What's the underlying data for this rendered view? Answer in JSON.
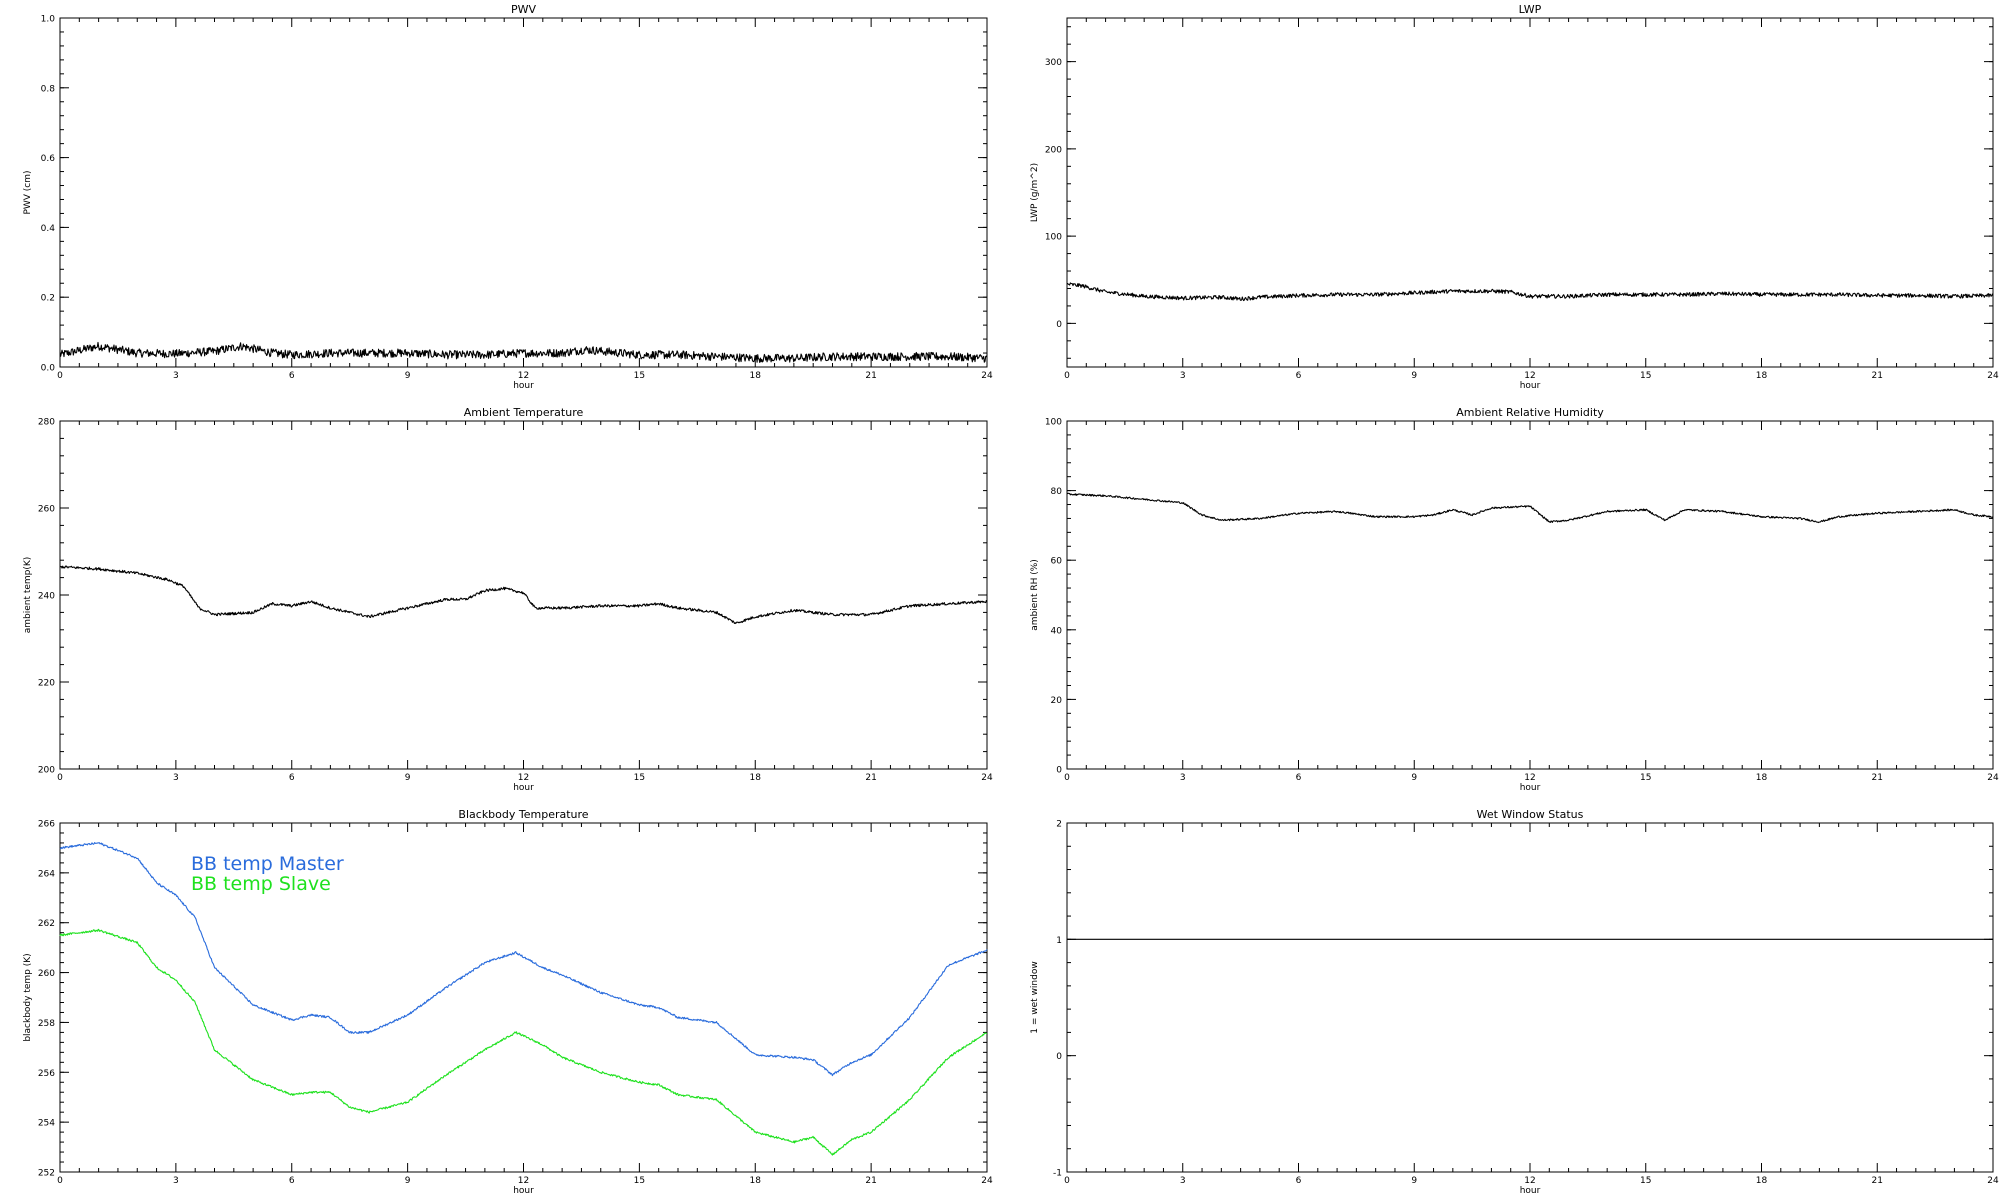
{
  "chart_data": [
    {
      "id": "pwv",
      "type": "line",
      "title": "PWV",
      "xlabel": "hour",
      "ylabel": "PWV (cm)",
      "xlim": [
        0,
        24
      ],
      "ylim": [
        0,
        1.0
      ],
      "xticks": [
        0,
        3,
        6,
        9,
        12,
        15,
        18,
        21,
        24
      ],
      "xtick_labels": [
        "0",
        "3",
        "6",
        "9",
        "12",
        "15",
        "18",
        "21",
        "24"
      ],
      "yticks": [
        0,
        0.2,
        0.4,
        0.6,
        0.8,
        1.0
      ],
      "ytick_labels": [
        "0.0",
        "0.2",
        "0.4",
        "0.6",
        "0.8",
        "1.0"
      ],
      "grid": false,
      "series": [
        {
          "color": "#000000",
          "noise": 0.012,
          "points": [
            [
              0,
              0.035
            ],
            [
              1,
              0.06
            ],
            [
              2,
              0.04
            ],
            [
              3,
              0.038
            ],
            [
              4,
              0.045
            ],
            [
              4.7,
              0.06
            ],
            [
              5.5,
              0.04
            ],
            [
              6,
              0.035
            ],
            [
              7,
              0.04
            ],
            [
              8,
              0.04
            ],
            [
              9,
              0.04
            ],
            [
              10,
              0.035
            ],
            [
              11,
              0.035
            ],
            [
              12,
              0.04
            ],
            [
              13,
              0.04
            ],
            [
              13.6,
              0.05
            ],
            [
              14.5,
              0.04
            ],
            [
              15,
              0.035
            ],
            [
              16,
              0.035
            ],
            [
              17,
              0.03
            ],
            [
              18,
              0.025
            ],
            [
              19,
              0.025
            ],
            [
              20,
              0.03
            ],
            [
              21,
              0.03
            ],
            [
              22,
              0.03
            ],
            [
              23,
              0.03
            ],
            [
              24,
              0.025
            ]
          ]
        }
      ]
    },
    {
      "id": "lwp",
      "type": "line",
      "title": "LWP",
      "xlabel": "hour",
      "ylabel": "LWP (g/m^2)",
      "xlim": [
        0,
        24
      ],
      "ylim": [
        -50,
        350
      ],
      "xticks": [
        0,
        3,
        6,
        9,
        12,
        15,
        18,
        21,
        24
      ],
      "xtick_labels": [
        "0",
        "3",
        "6",
        "9",
        "12",
        "15",
        "18",
        "21",
        "24"
      ],
      "yticks": [
        0,
        100,
        200,
        300
      ],
      "ytick_labels": [
        "0",
        "100",
        "200",
        "300"
      ],
      "grid": false,
      "series": [
        {
          "color": "#000000",
          "noise": 2.2,
          "points": [
            [
              0,
              45
            ],
            [
              0.4,
              43
            ],
            [
              1,
              36
            ],
            [
              2,
              31
            ],
            [
              3,
              29
            ],
            [
              4,
              30
            ],
            [
              4.5,
              28
            ],
            [
              5,
              30
            ],
            [
              6,
              32
            ],
            [
              7,
              33
            ],
            [
              8,
              33
            ],
            [
              9,
              35
            ],
            [
              10,
              37
            ],
            [
              11,
              37
            ],
            [
              11.5,
              36
            ],
            [
              12,
              31
            ],
            [
              13,
              31
            ],
            [
              14,
              33
            ],
            [
              15,
              33
            ],
            [
              16,
              33
            ],
            [
              17,
              34
            ],
            [
              18,
              33
            ],
            [
              19,
              33
            ],
            [
              20,
              33
            ],
            [
              21,
              32
            ],
            [
              22,
              32
            ],
            [
              23,
              31
            ],
            [
              24,
              32
            ]
          ]
        }
      ]
    },
    {
      "id": "ambient-temp",
      "type": "line",
      "title": "Ambient Temperature",
      "xlabel": "hour",
      "ylabel": "ambient temp(K)",
      "xlim": [
        0,
        24
      ],
      "ylim": [
        200,
        280
      ],
      "xticks": [
        0,
        3,
        6,
        9,
        12,
        15,
        18,
        21,
        24
      ],
      "xtick_labels": [
        "0",
        "3",
        "6",
        "9",
        "12",
        "15",
        "18",
        "21",
        "24"
      ],
      "yticks": [
        200,
        220,
        240,
        260,
        280
      ],
      "ytick_labels": [
        "200",
        "220",
        "240",
        "260",
        "280"
      ],
      "grid": false,
      "series": [
        {
          "color": "#000000",
          "noise": 0.3,
          "points": [
            [
              0,
              246.5
            ],
            [
              1,
              246
            ],
            [
              2,
              245
            ],
            [
              2.8,
              243.5
            ],
            [
              3.2,
              242
            ],
            [
              3.6,
              237
            ],
            [
              4,
              235.5
            ],
            [
              5,
              236
            ],
            [
              5.5,
              238
            ],
            [
              6,
              237.5
            ],
            [
              6.5,
              238.5
            ],
            [
              7,
              237
            ],
            [
              7.5,
              236
            ],
            [
              8,
              235
            ],
            [
              8.5,
              236
            ],
            [
              9,
              237
            ],
            [
              9.5,
              238
            ],
            [
              10,
              239
            ],
            [
              10.5,
              239
            ],
            [
              11,
              241
            ],
            [
              11.5,
              241.5
            ],
            [
              12,
              240.5
            ],
            [
              12.3,
              237
            ],
            [
              13,
              237
            ],
            [
              14,
              237.5
            ],
            [
              15,
              237.5
            ],
            [
              15.5,
              238
            ],
            [
              16,
              237
            ],
            [
              17,
              236
            ],
            [
              17.5,
              233.5
            ],
            [
              18,
              235
            ],
            [
              19,
              236.5
            ],
            [
              20,
              235.5
            ],
            [
              21,
              235.5
            ],
            [
              21.5,
              236.5
            ],
            [
              22,
              237.5
            ],
            [
              23,
              238
            ],
            [
              24,
              238.5
            ]
          ]
        }
      ]
    },
    {
      "id": "ambient-rh",
      "type": "line",
      "title": "Ambient Relative Humidity",
      "xlabel": "hour",
      "ylabel": "ambient RH (%)",
      "xlim": [
        0,
        24
      ],
      "ylim": [
        0,
        100
      ],
      "xticks": [
        0,
        3,
        6,
        9,
        12,
        15,
        18,
        21,
        24
      ],
      "xtick_labels": [
        "0",
        "3",
        "6",
        "9",
        "12",
        "15",
        "18",
        "21",
        "24"
      ],
      "yticks": [
        0,
        20,
        40,
        60,
        80,
        100
      ],
      "ytick_labels": [
        "0",
        "20",
        "40",
        "60",
        "80",
        "100"
      ],
      "grid": false,
      "series": [
        {
          "color": "#000000",
          "noise": 0.25,
          "points": [
            [
              0,
              79
            ],
            [
              1,
              78.5
            ],
            [
              2,
              77.5
            ],
            [
              3,
              76.5
            ],
            [
              3.5,
              73
            ],
            [
              4,
              71.5
            ],
            [
              5,
              72
            ],
            [
              6,
              73.5
            ],
            [
              7,
              74
            ],
            [
              8,
              72.5
            ],
            [
              9,
              72.5
            ],
            [
              9.5,
              73
            ],
            [
              10,
              74.5
            ],
            [
              10.5,
              73
            ],
            [
              11,
              75
            ],
            [
              12,
              75.5
            ],
            [
              12.5,
              71
            ],
            [
              13,
              71.5
            ],
            [
              14,
              74
            ],
            [
              15,
              74.5
            ],
            [
              15.5,
              71.5
            ],
            [
              16,
              74.5
            ],
            [
              17,
              74
            ],
            [
              18,
              72.5
            ],
            [
              19,
              72
            ],
            [
              19.5,
              71
            ],
            [
              20,
              72.5
            ],
            [
              21,
              73.5
            ],
            [
              22,
              74
            ],
            [
              23,
              74.5
            ],
            [
              23.5,
              73
            ],
            [
              24,
              72.5
            ]
          ]
        }
      ]
    },
    {
      "id": "blackbody-temp",
      "type": "line",
      "title": "Blackbody Temperature",
      "xlabel": "hour",
      "ylabel": "blackbody temp (K)",
      "xlim": [
        0,
        24
      ],
      "ylim": [
        252,
        266
      ],
      "xticks": [
        0,
        3,
        6,
        9,
        12,
        15,
        18,
        21,
        24
      ],
      "xtick_labels": [
        "0",
        "3",
        "6",
        "9",
        "12",
        "15",
        "18",
        "21",
        "24"
      ],
      "yticks": [
        252,
        254,
        256,
        258,
        260,
        262,
        264,
        266
      ],
      "ytick_labels": [
        "252",
        "254",
        "256",
        "258",
        "260",
        "262",
        "264",
        "266"
      ],
      "grid": false,
      "legend": [
        "BB temp Master",
        "BB temp Slave"
      ],
      "legend_placement": "top-left",
      "series": [
        {
          "name": "BB temp Master",
          "color": "#2a6cdc",
          "noise": 0.04,
          "points": [
            [
              0,
              265
            ],
            [
              1,
              265.2
            ],
            [
              2,
              264.6
            ],
            [
              2.5,
              263.6
            ],
            [
              3,
              263.1
            ],
            [
              3.5,
              262.2
            ],
            [
              4,
              260.2
            ],
            [
              5,
              258.7
            ],
            [
              6,
              258.1
            ],
            [
              6.5,
              258.3
            ],
            [
              7,
              258.2
            ],
            [
              7.5,
              257.6
            ],
            [
              8,
              257.6
            ],
            [
              9,
              258.3
            ],
            [
              10,
              259.4
            ],
            [
              11,
              260.4
            ],
            [
              11.8,
              260.8
            ],
            [
              12.5,
              260.2
            ],
            [
              13,
              259.9
            ],
            [
              14,
              259.2
            ],
            [
              15,
              258.7
            ],
            [
              15.5,
              258.6
            ],
            [
              16,
              258.2
            ],
            [
              17,
              258
            ],
            [
              18,
              256.7
            ],
            [
              19,
              256.6
            ],
            [
              19.5,
              256.5
            ],
            [
              20,
              255.9
            ],
            [
              20.5,
              256.4
            ],
            [
              21,
              256.7
            ],
            [
              22,
              258.2
            ],
            [
              23,
              260.3
            ],
            [
              24,
              260.9
            ]
          ]
        },
        {
          "name": "BB temp Slave",
          "color": "#1ee11e",
          "noise": 0.04,
          "points": [
            [
              0,
              261.5
            ],
            [
              1,
              261.7
            ],
            [
              2,
              261.2
            ],
            [
              2.5,
              260.2
            ],
            [
              3,
              259.7
            ],
            [
              3.5,
              258.8
            ],
            [
              4,
              256.9
            ],
            [
              5,
              255.7
            ],
            [
              6,
              255.1
            ],
            [
              6.5,
              255.2
            ],
            [
              7,
              255.2
            ],
            [
              7.5,
              254.6
            ],
            [
              8,
              254.4
            ],
            [
              9,
              254.8
            ],
            [
              10,
              255.9
            ],
            [
              11,
              256.9
            ],
            [
              11.8,
              257.6
            ],
            [
              12.5,
              257.1
            ],
            [
              13,
              256.6
            ],
            [
              14,
              256
            ],
            [
              15,
              255.6
            ],
            [
              15.5,
              255.5
            ],
            [
              16,
              255.1
            ],
            [
              17,
              254.9
            ],
            [
              18,
              253.6
            ],
            [
              19,
              253.2
            ],
            [
              19.5,
              253.4
            ],
            [
              20,
              252.7
            ],
            [
              20.5,
              253.3
            ],
            [
              21,
              253.6
            ],
            [
              22,
              254.9
            ],
            [
              23,
              256.6
            ],
            [
              24,
              257.6
            ]
          ]
        }
      ]
    },
    {
      "id": "wet-window",
      "type": "line",
      "title": "Wet Window Status",
      "xlabel": "hour",
      "ylabel": "1 = wet window",
      "xlim": [
        0,
        24
      ],
      "ylim": [
        -1,
        2
      ],
      "xticks": [
        0,
        3,
        6,
        9,
        12,
        15,
        18,
        21,
        24
      ],
      "xtick_labels": [
        "0",
        "3",
        "6",
        "9",
        "12",
        "15",
        "18",
        "21",
        "24"
      ],
      "yticks": [
        -1,
        0,
        1,
        2
      ],
      "ytick_labels": [
        "-1",
        "0",
        "1",
        "2"
      ],
      "grid": false,
      "series": [
        {
          "color": "#000000",
          "noise": 0,
          "points": [
            [
              0,
              1
            ],
            [
              24,
              1
            ]
          ]
        }
      ]
    }
  ]
}
